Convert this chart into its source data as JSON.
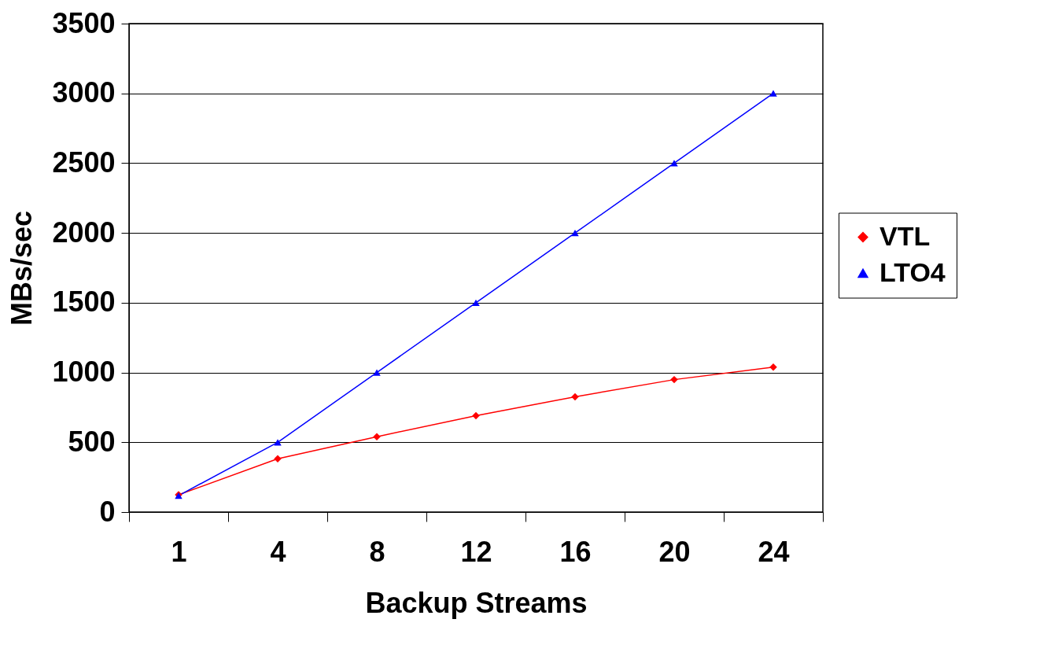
{
  "chart_data": {
    "type": "line",
    "xlabel": "Backup Streams",
    "ylabel": "MBs/sec",
    "categories": [
      "1",
      "4",
      "8",
      "12",
      "16",
      "20",
      "24"
    ],
    "series": [
      {
        "name": "VTL",
        "color": "#ff0000",
        "marker": "diamond",
        "values": [
          124,
          382,
          540,
          691,
          826,
          949,
          1039
        ]
      },
      {
        "name": "LTO4",
        "color": "#0000ff",
        "marker": "triangle",
        "values": [
          118,
          500,
          1000,
          1500,
          2000,
          2500,
          3000
        ]
      }
    ],
    "ylim": [
      0,
      3500
    ],
    "yticks": [
      0,
      500,
      1000,
      1500,
      2000,
      2500,
      3000,
      3500
    ],
    "grid": "y",
    "legend": "right",
    "line_style": "solid"
  }
}
